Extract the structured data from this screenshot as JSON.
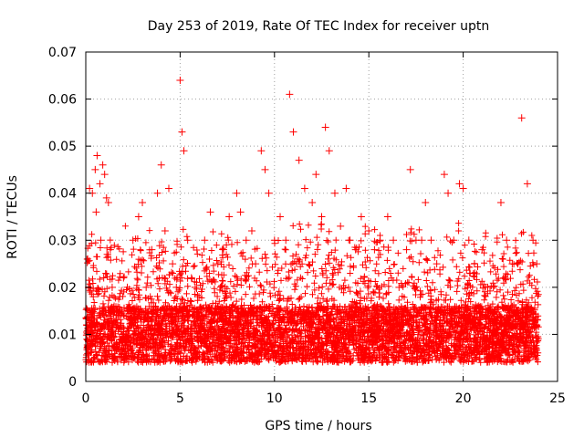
{
  "chart_data": {
    "type": "scatter",
    "title": "Day 253 of 2019, Rate Of TEC Index for receiver uptn",
    "xlabel": "GPS time / hours",
    "ylabel": "ROTI / TECUs",
    "xlim": [
      0,
      25
    ],
    "ylim": [
      0,
      0.07
    ],
    "x_ticks": [
      0,
      5,
      10,
      15,
      20,
      25
    ],
    "x_tick_labels": [
      "0",
      "5",
      "10",
      "15",
      "20",
      "25"
    ],
    "y_ticks": [
      0,
      0.01,
      0.02,
      0.03,
      0.04,
      0.05,
      0.06,
      0.07
    ],
    "y_tick_labels": [
      "0",
      "0.01",
      "0.02",
      "0.03",
      "0.04",
      "0.05",
      "0.06",
      "0.07"
    ],
    "grid": true,
    "legend": "none",
    "marker": "plus",
    "color": "#ff0000",
    "series": [
      {
        "x": [
          0.05,
          0.1,
          0.15,
          0.2,
          0.3,
          0.35,
          0.4,
          0.5,
          0.55,
          0.6,
          0.7,
          0.75,
          0.8,
          0.9,
          0.95,
          1.0,
          1.1,
          1.2,
          1.3,
          1.4,
          1.5,
          1.6,
          1.7,
          1.8,
          2.0,
          2.2,
          2.5,
          2.8,
          3.0,
          3.2,
          3.5,
          3.8,
          4.0,
          4.2,
          4.4,
          4.6,
          4.8,
          5.0,
          5.1,
          5.2,
          5.4,
          5.6,
          5.8,
          6.0,
          6.3,
          6.6,
          7.0,
          7.3,
          7.6,
          8.0,
          8.2,
          8.5,
          8.8,
          9.0,
          9.3,
          9.5,
          9.7,
          10.0,
          10.3,
          10.6,
          10.8,
          11.0,
          11.3,
          11.6,
          12.0,
          12.2,
          12.5,
          12.7,
          12.9,
          13.2,
          13.5,
          13.8,
          14.0,
          14.3,
          14.6,
          15.0,
          15.3,
          15.6,
          16.0,
          16.3,
          16.6,
          17.0,
          17.2,
          17.5,
          17.8,
          18.0,
          18.3,
          18.6,
          19.0,
          19.2,
          19.5,
          19.8,
          20.0,
          20.3,
          20.6,
          21.0,
          21.3,
          21.6,
          22.0,
          22.3,
          22.6,
          22.9,
          23.1,
          23.4,
          23.7,
          23.9
        ],
        "y": [
          0.012,
          0.026,
          0.02,
          0.041,
          0.015,
          0.04,
          0.018,
          0.045,
          0.036,
          0.048,
          0.014,
          0.042,
          0.03,
          0.046,
          0.022,
          0.044,
          0.039,
          0.038,
          0.028,
          0.02,
          0.016,
          0.012,
          0.014,
          0.018,
          0.022,
          0.02,
          0.03,
          0.035,
          0.038,
          0.02,
          0.028,
          0.04,
          0.046,
          0.032,
          0.041,
          0.025,
          0.02,
          0.064,
          0.053,
          0.049,
          0.03,
          0.022,
          0.02,
          0.018,
          0.03,
          0.036,
          0.025,
          0.028,
          0.035,
          0.04,
          0.036,
          0.03,
          0.032,
          0.025,
          0.049,
          0.045,
          0.04,
          0.03,
          0.035,
          0.03,
          0.061,
          0.053,
          0.047,
          0.041,
          0.038,
          0.044,
          0.035,
          0.054,
          0.049,
          0.04,
          0.033,
          0.041,
          0.03,
          0.028,
          0.035,
          0.032,
          0.028,
          0.03,
          0.035,
          0.03,
          0.02,
          0.028,
          0.045,
          0.03,
          0.03,
          0.038,
          0.03,
          0.025,
          0.044,
          0.04,
          0.03,
          0.042,
          0.041,
          0.03,
          0.025,
          0.028,
          0.02,
          0.02,
          0.038,
          0.03,
          0.025,
          0.025,
          0.056,
          0.042,
          0.03,
          0.025
        ]
      }
    ]
  }
}
